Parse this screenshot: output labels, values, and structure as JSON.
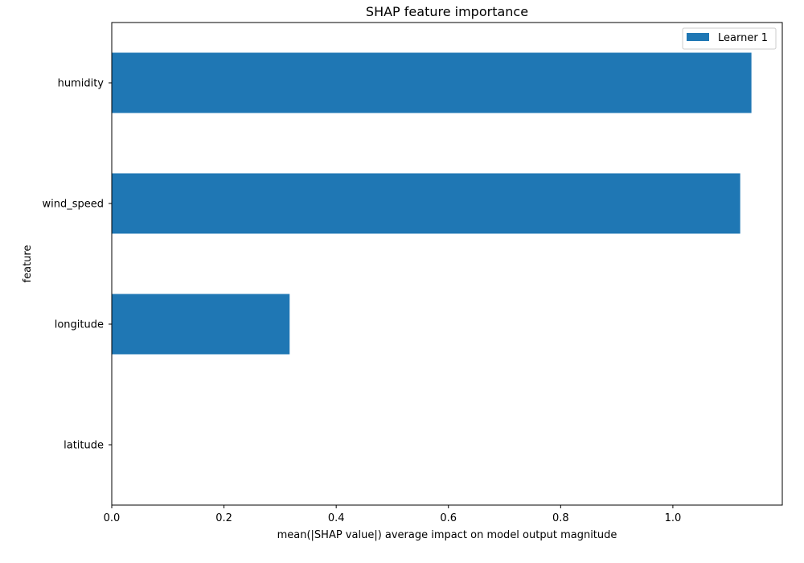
{
  "chart_data": {
    "type": "bar",
    "orientation": "horizontal",
    "title": "SHAP feature importance",
    "xlabel": "mean(|SHAP value|) average impact on model output magnitude",
    "ylabel": "feature",
    "categories": [
      "humidity",
      "wind_speed",
      "longitude",
      "latitude"
    ],
    "series": [
      {
        "name": "Learner 1",
        "values": [
          1.14,
          1.12,
          0.317,
          0.0
        ],
        "color": "#1f77b4"
      }
    ],
    "xlim": [
      0,
      1.195
    ],
    "x_ticks": [
      0.0,
      0.2,
      0.4,
      0.6,
      0.8,
      1.0
    ],
    "x_tick_labels": [
      "0.0",
      "0.2",
      "0.4",
      "0.6",
      "0.8",
      "1.0"
    ],
    "grid": false,
    "legend_position": "top-right"
  }
}
